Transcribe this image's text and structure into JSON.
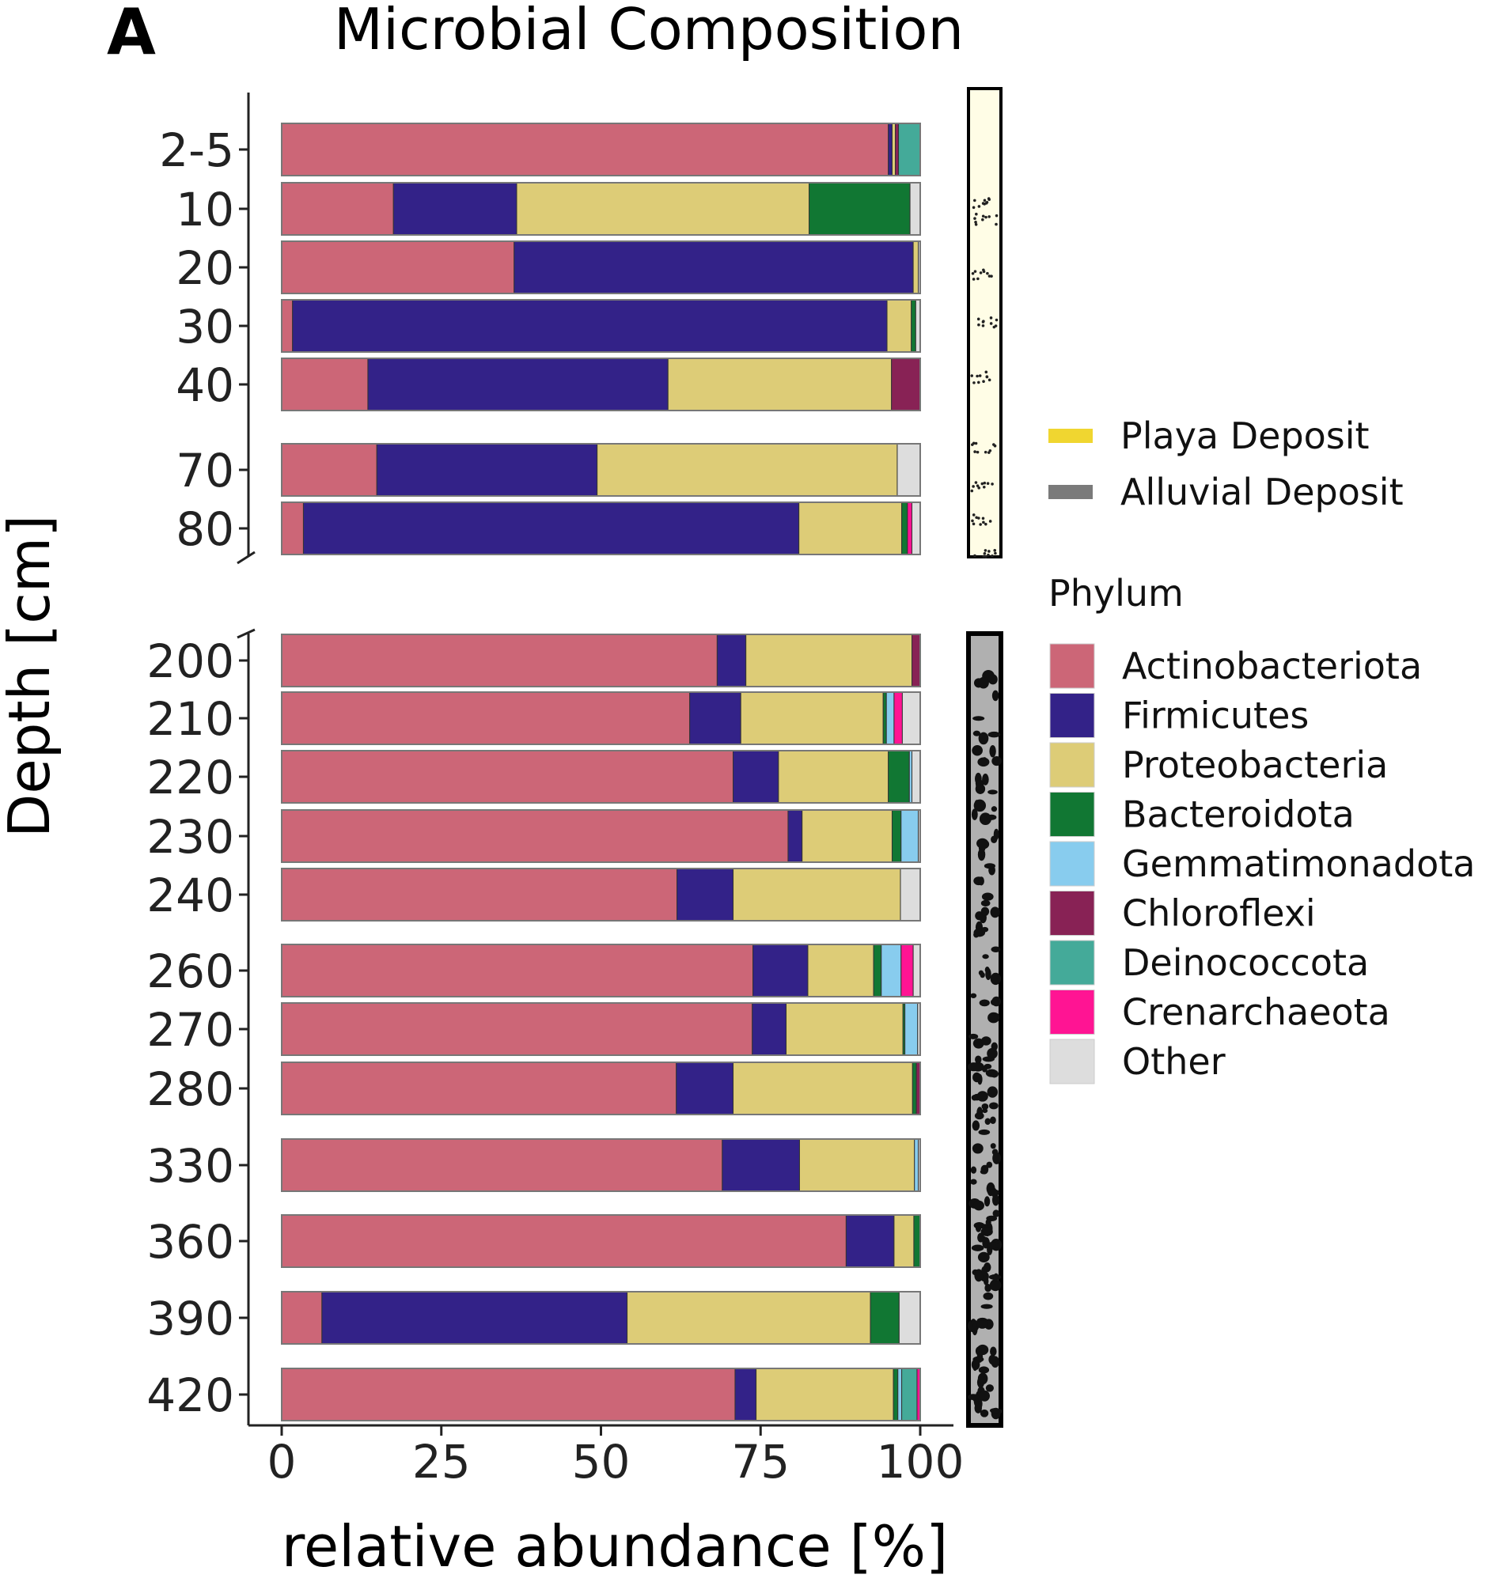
{
  "chart_data": {
    "type": "bar",
    "orientation": "horizontal",
    "stacked": true,
    "panel_label": "A",
    "title": "Microbial Composition",
    "xlabel": "relative abundance [%]",
    "ylabel": "Depth [cm]",
    "xlim": [
      0,
      100
    ],
    "xticks": [
      "0",
      "25",
      "50",
      "75",
      "100"
    ],
    "grid": false,
    "axis_break": "between 80 and 200",
    "legend_placement": "right",
    "legend_title": "Phylum",
    "categories": [
      "2-5",
      "10",
      "20",
      "30",
      "40",
      "70",
      "80",
      "200",
      "210",
      "220",
      "230",
      "240",
      "260",
      "270",
      "280",
      "330",
      "360",
      "390",
      "420"
    ],
    "series": [
      {
        "name": "Actinobacteriota",
        "color": "#CC6677",
        "values": [
          95.0,
          17.5,
          36.4,
          1.7,
          13.5,
          14.9,
          3.4,
          68.2,
          63.9,
          70.7,
          79.3,
          61.9,
          73.8,
          73.7,
          61.8,
          69.0,
          88.4,
          6.3,
          71.0
        ]
      },
      {
        "name": "Firmicutes",
        "color": "#332288",
        "values": [
          0.6,
          19.3,
          62.5,
          93.1,
          47.0,
          34.5,
          77.6,
          4.5,
          8.0,
          7.1,
          2.2,
          8.8,
          8.6,
          5.3,
          8.9,
          12.1,
          7.5,
          47.8,
          3.3
        ]
      },
      {
        "name": "Proteobacteria",
        "color": "#DDCC77",
        "values": [
          0.5,
          45.8,
          0.8,
          3.8,
          35.0,
          47.0,
          16.1,
          26.0,
          22.3,
          17.2,
          14.1,
          26.2,
          10.3,
          18.3,
          28.1,
          18.0,
          3.1,
          38.1,
          21.5
        ]
      },
      {
        "name": "Bacteroidota",
        "color": "#117733",
        "values": [
          0,
          15.8,
          0,
          0.7,
          0,
          0,
          0.9,
          0,
          0.5,
          3.3,
          1.4,
          0,
          1.2,
          0.3,
          0.6,
          0,
          1.0,
          4.5,
          0.7
        ]
      },
      {
        "name": "Gemmatimonadota",
        "color": "#88CCEE",
        "values": [
          0,
          0,
          0,
          0,
          0,
          0,
          0,
          0,
          1.2,
          0.4,
          2.7,
          0,
          3.1,
          2.0,
          0,
          0.6,
          0,
          0,
          0.6
        ]
      },
      {
        "name": "Chloroflexi",
        "color": "#882255",
        "values": [
          0.5,
          0,
          0,
          0,
          4.5,
          0,
          0,
          1.3,
          0,
          0,
          0,
          0,
          0,
          0,
          0.6,
          0,
          0,
          0,
          0
        ]
      },
      {
        "name": "Deinococcota",
        "color": "#44AA99",
        "values": [
          3.4,
          0,
          0,
          0,
          0,
          0,
          0,
          0,
          0,
          0,
          0,
          0,
          0,
          0,
          0,
          0,
          0,
          0,
          2.4
        ]
      },
      {
        "name": "Crenarchaeota",
        "color": "#FF1493",
        "values": [
          0,
          0,
          0,
          0,
          0,
          0,
          0.7,
          0,
          1.3,
          0,
          0,
          0,
          1.9,
          0,
          0,
          0,
          0,
          0,
          0.5
        ]
      },
      {
        "name": "Other",
        "color": "#DDDDDD",
        "values": [
          0,
          1.6,
          0.3,
          0.7,
          0,
          3.6,
          1.3,
          0,
          2.8,
          1.3,
          0.3,
          3.1,
          1.1,
          0.4,
          0,
          0.3,
          0,
          3.3,
          0
        ]
      }
    ],
    "deposit_legend": [
      {
        "name": "Playa Deposit",
        "color": "#F0D630"
      },
      {
        "name": "Alluvial Deposit",
        "color": "#7A7A7A"
      }
    ]
  }
}
